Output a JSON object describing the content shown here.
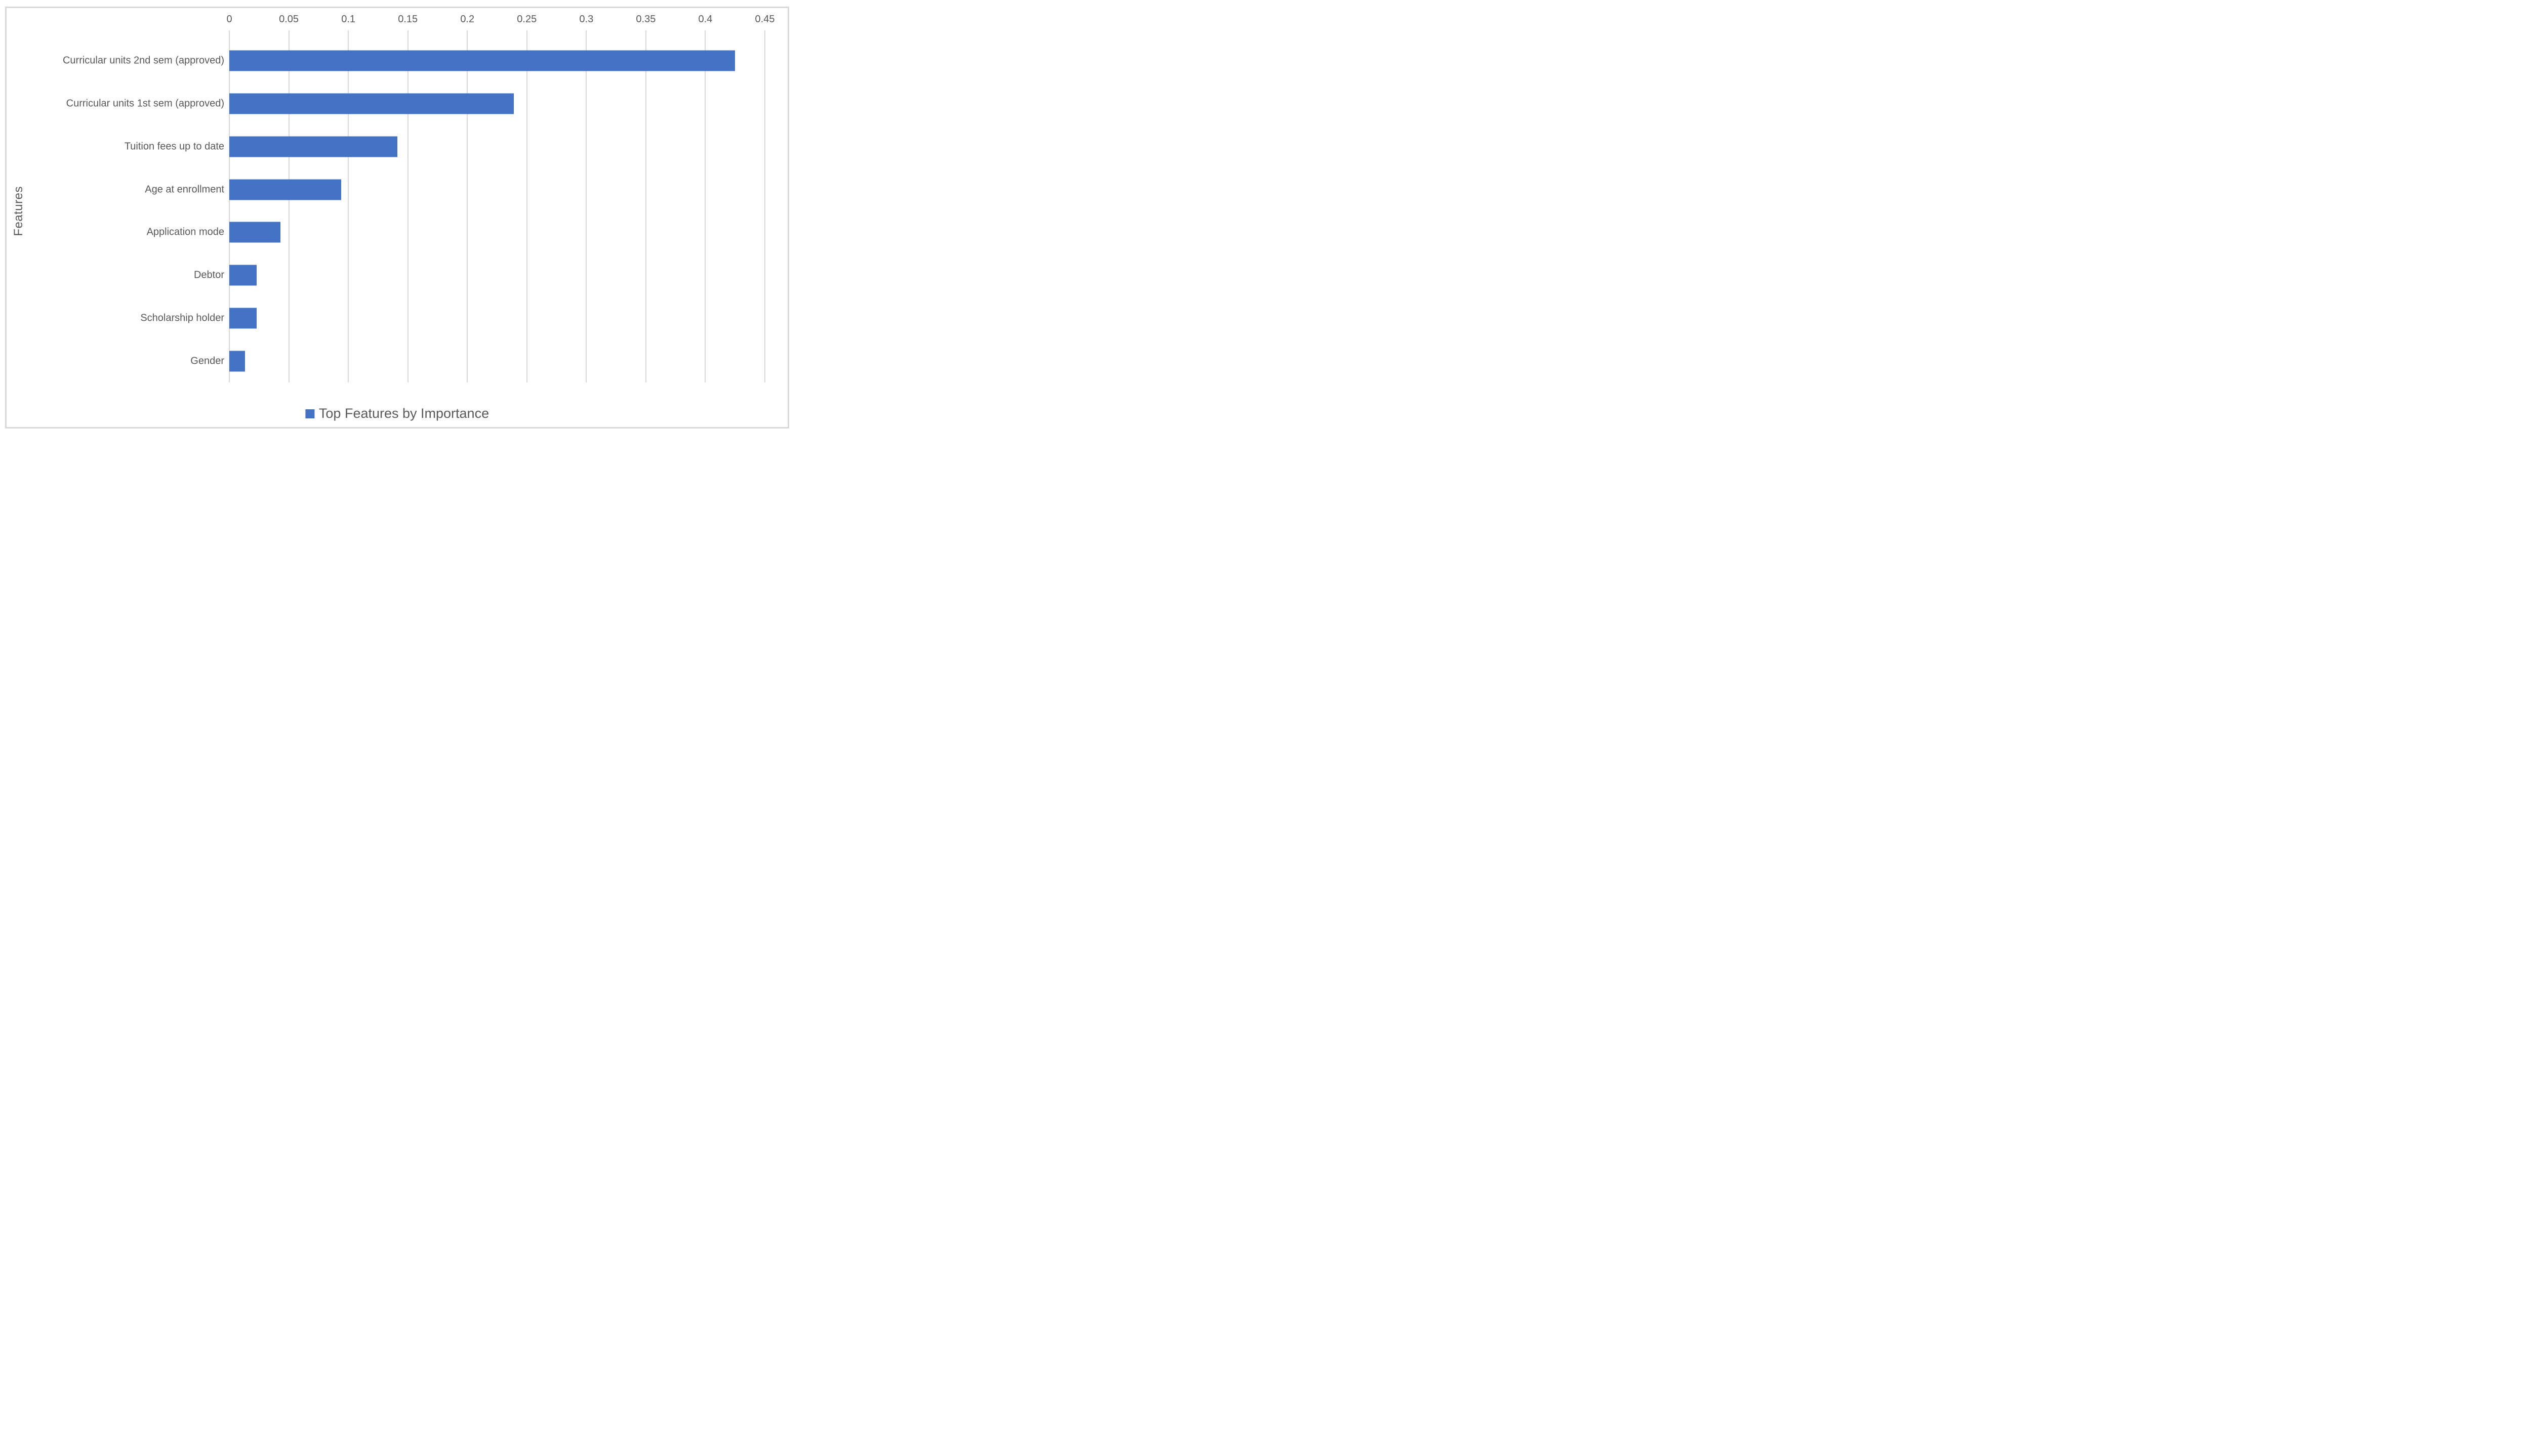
{
  "chart_data": {
    "type": "bar",
    "orientation": "horizontal",
    "title": "",
    "legend": "Top Features by Importance",
    "ylabel": "Features",
    "xlabel": "",
    "categories": [
      "Curricular units 2nd sem (approved)",
      "Curricular units 1st sem (approved)",
      "Tuition fees up to date",
      "Age at enrollment",
      "Application mode",
      "Debtor",
      "Scholarship holder",
      "Gender"
    ],
    "values": [
      0.425,
      0.239,
      0.141,
      0.094,
      0.043,
      0.023,
      0.023,
      0.013
    ],
    "xlim": [
      0,
      0.45
    ],
    "xticks": [
      0,
      0.05,
      0.1,
      0.15,
      0.2,
      0.25,
      0.3,
      0.35,
      0.4,
      0.45
    ],
    "xtick_labels": [
      "0",
      "0.05",
      "0.1",
      "0.15",
      "0.2",
      "0.25",
      "0.3",
      "0.35",
      "0.4",
      "0.45"
    ],
    "grid": true,
    "axis_position": "top",
    "legend_position": "bottom-center",
    "colors": {
      "bar": "#4472C4",
      "grid": "#D9D9D9",
      "text": "#595959",
      "frame_border": "#D9D9D9",
      "background": "#FFFFFF"
    }
  }
}
